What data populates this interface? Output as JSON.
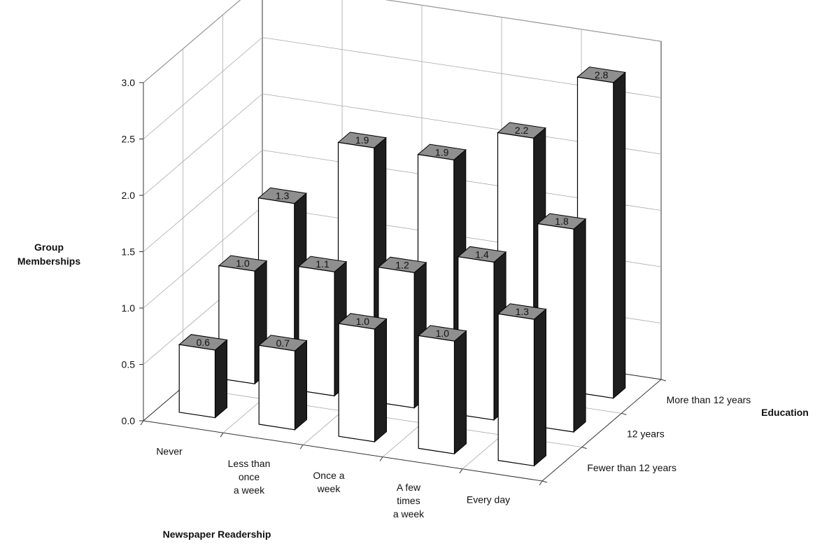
{
  "chart_data": {
    "type": "bar",
    "variant": "3d",
    "title": "",
    "xlabel": "Newspaper Readership",
    "ylabel": "Group Memberships",
    "zlabel": "Education",
    "categories": [
      [
        "Never"
      ],
      [
        "Less than",
        "once",
        "a week"
      ],
      [
        "Once a",
        "week"
      ],
      [
        "A few",
        "times",
        "a week"
      ],
      [
        "Every day"
      ]
    ],
    "series": [
      {
        "name": "Fewer than 12 years",
        "values": [
          0.6,
          0.7,
          1.0,
          1.0,
          1.3
        ]
      },
      {
        "name": "12 years",
        "values": [
          1.0,
          1.1,
          1.2,
          1.4,
          1.8
        ]
      },
      {
        "name": "More than 12 years",
        "values": [
          1.3,
          1.9,
          1.9,
          2.2,
          2.8
        ]
      }
    ],
    "value_labels": [
      [
        "0.6",
        "0.7",
        "1.0",
        "1.0",
        "1.3"
      ],
      [
        "1.0",
        "1.1",
        "1.2",
        "1.4",
        "1.8"
      ],
      [
        "1.3",
        "1.9",
        "1.9",
        "2.2",
        "2.8"
      ]
    ],
    "yticks": [
      "0.0",
      "0.5",
      "1.0",
      "1.5",
      "2.0",
      "2.5",
      "3.0"
    ],
    "ylim": [
      0,
      3
    ],
    "grid": true,
    "colors": {
      "front": "#ffffff",
      "top": "#8f8f8f",
      "side": "#1e1e1e",
      "grid": "#a8a8a8",
      "axis": "#333333"
    }
  }
}
